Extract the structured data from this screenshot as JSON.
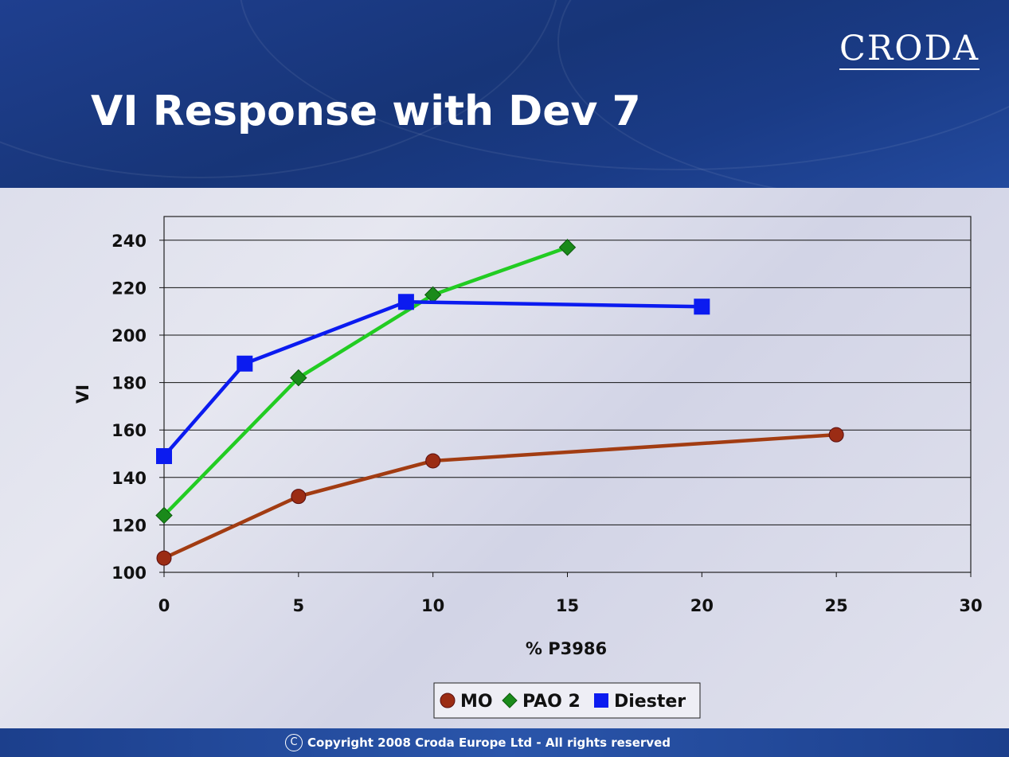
{
  "header": {
    "logo_text": "CRODA",
    "title": "VI Response with Dev 7"
  },
  "footer": {
    "copyright_symbol": "C",
    "copyright_text": "Copyright 2008 Croda Europe Ltd - All rights reserved"
  },
  "chart_data": {
    "type": "line",
    "title": "",
    "xlabel": "% P3986",
    "ylabel": "VI",
    "xlim": [
      0,
      30
    ],
    "ylim": [
      100,
      250
    ],
    "x_ticks": [
      0,
      5,
      10,
      15,
      20,
      25,
      30
    ],
    "y_ticks": [
      100,
      120,
      140,
      160,
      180,
      200,
      220,
      240
    ],
    "grid": "horizontal",
    "legend_position": "bottom",
    "series": [
      {
        "name": "MO",
        "color": "#9b2c14",
        "line_color": "#a23c12",
        "marker": "circle",
        "x": [
          0,
          5,
          10,
          25
        ],
        "y": [
          106,
          132,
          147,
          158
        ]
      },
      {
        "name": "PAO 2",
        "color": "#1a8a1a",
        "line_color": "#22cc22",
        "marker": "diamond",
        "x": [
          0,
          5,
          10,
          15
        ],
        "y": [
          124,
          182,
          217,
          237
        ]
      },
      {
        "name": "Diester",
        "color": "#0b1bf0",
        "line_color": "#0b1bf0",
        "marker": "square",
        "x": [
          0,
          3,
          9,
          20
        ],
        "y": [
          149,
          188,
          214,
          212
        ]
      }
    ]
  }
}
